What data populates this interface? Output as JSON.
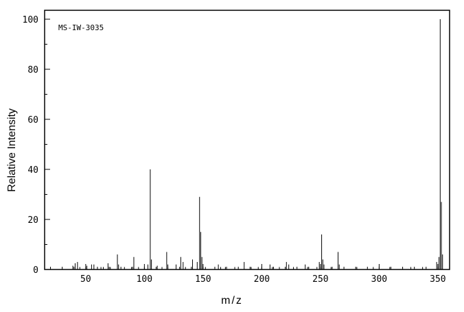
{
  "chart": {
    "annotation": "MS-IW-3035",
    "background": "#ffffff",
    "line_color": "#000000",
    "x_axis": {
      "label": "m/z",
      "min": 15,
      "max": 360,
      "major_ticks": [
        50,
        100,
        150,
        200,
        250,
        300,
        350
      ],
      "minor_step": 10
    },
    "y_axis": {
      "label": "Relative Intensity",
      "min": 0,
      "max": 100,
      "major_ticks": [
        0,
        20,
        40,
        60,
        80,
        100
      ],
      "minor_step": 10
    }
  },
  "chart_data": {
    "type": "bar",
    "title": "MS-IW-3035",
    "xlabel": "m/z",
    "ylabel": "Relative Intensity",
    "xlim": [
      15,
      360
    ],
    "ylim": [
      0,
      100
    ],
    "grid": false,
    "legend": false,
    "peaks_format": "[m/z, relative_intensity]",
    "peaks": [
      [
        39,
        1.5
      ],
      [
        41,
        2.5
      ],
      [
        43,
        3
      ],
      [
        45,
        1
      ],
      [
        51,
        1.5
      ],
      [
        55,
        2
      ],
      [
        57,
        2
      ],
      [
        63,
        1
      ],
      [
        65,
        1
      ],
      [
        69,
        2.5
      ],
      [
        71,
        1
      ],
      [
        77,
        6
      ],
      [
        78,
        2
      ],
      [
        83,
        1
      ],
      [
        89,
        1
      ],
      [
        91,
        5
      ],
      [
        95,
        1
      ],
      [
        103,
        2
      ],
      [
        105,
        40
      ],
      [
        106,
        4
      ],
      [
        111,
        1.5
      ],
      [
        115,
        1
      ],
      [
        119,
        7
      ],
      [
        120,
        2
      ],
      [
        127,
        2
      ],
      [
        131,
        5
      ],
      [
        133,
        3
      ],
      [
        135,
        1
      ],
      [
        141,
        4
      ],
      [
        145,
        3
      ],
      [
        147,
        29
      ],
      [
        148,
        15
      ],
      [
        149,
        5
      ],
      [
        152,
        1
      ],
      [
        163,
        2
      ],
      [
        165,
        1
      ],
      [
        169,
        1
      ],
      [
        177,
        1
      ],
      [
        185,
        3
      ],
      [
        191,
        1
      ],
      [
        197,
        1
      ],
      [
        207,
        2
      ],
      [
        209,
        1
      ],
      [
        215,
        1
      ],
      [
        221,
        3
      ],
      [
        223,
        2
      ],
      [
        227,
        1
      ],
      [
        237,
        2
      ],
      [
        239,
        1
      ],
      [
        247,
        1
      ],
      [
        249,
        3
      ],
      [
        251,
        14
      ],
      [
        252,
        4
      ],
      [
        253,
        2
      ],
      [
        259,
        1
      ],
      [
        265,
        7
      ],
      [
        266,
        2
      ],
      [
        281,
        1
      ],
      [
        295,
        1
      ],
      [
        309,
        1
      ],
      [
        327,
        1
      ],
      [
        337,
        1
      ],
      [
        349,
        3
      ],
      [
        351,
        5
      ],
      [
        352,
        100
      ],
      [
        353,
        27
      ],
      [
        354,
        6
      ]
    ]
  }
}
